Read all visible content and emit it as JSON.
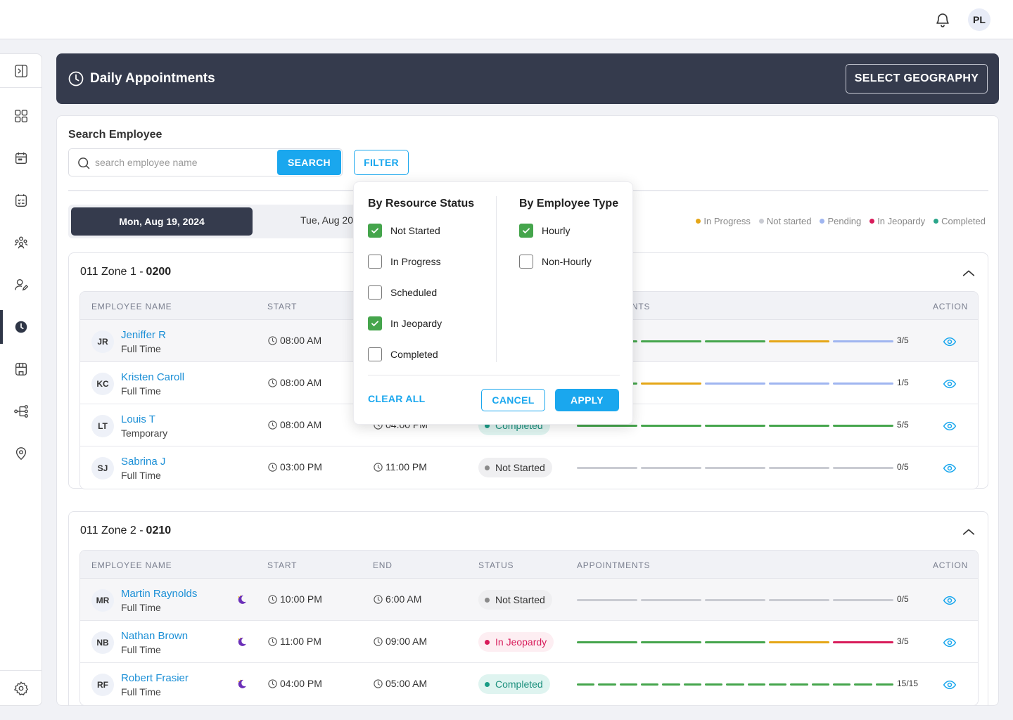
{
  "user": {
    "initials": "PL"
  },
  "header": {
    "title": "Daily Appointments",
    "select_geography_label": "SELECT GEOGRAPHY"
  },
  "search": {
    "label": "Search Employee",
    "placeholder": "search employee name",
    "value": "",
    "button_label": "SEARCH",
    "filter_label": "FILTER"
  },
  "dates": {
    "active": "Mon, Aug 19, 2024",
    "next": "Tue, Aug 20"
  },
  "legend": [
    {
      "label": "In Progress",
      "color": "#e5a617"
    },
    {
      "label": "Not started",
      "color": "#c9cbd2"
    },
    {
      "label": "Pending",
      "color": "#9fb5f0"
    },
    {
      "label": "In Jeopardy",
      "color": "#d81b5a"
    },
    {
      "label": "Completed",
      "color": "#2aa58a"
    }
  ],
  "columns": {
    "name": "EMPLOYEE NAME",
    "start": "START",
    "end": "END",
    "status": "STATUS",
    "appointments": "APPOINTMENTS",
    "action": "ACTION"
  },
  "zones": [
    {
      "label": "011 Zone 1 -",
      "code": "0200",
      "rows": [
        {
          "initials": "JR",
          "name": "Jeniffer R",
          "type": "Full Time",
          "start": "08:00 AM",
          "end": "",
          "status": "",
          "count": "3/5"
        },
        {
          "initials": "KC",
          "name": "Kristen Caroll",
          "type": "Full Time",
          "start": "08:00 AM",
          "end": "",
          "status": "",
          "count": "1/5"
        },
        {
          "initials": "LT",
          "name": "Louis T",
          "type": "Temporary",
          "start": "08:00 AM",
          "end": "04:00 PM",
          "status": "Completed",
          "count": "5/5"
        },
        {
          "initials": "SJ",
          "name": "Sabrina J",
          "type": "Full Time",
          "start": "03:00 PM",
          "end": "11:00 PM",
          "status": "Not Started",
          "count": "0/5"
        }
      ]
    },
    {
      "label": "011 Zone 2 -",
      "code": "0210",
      "rows": [
        {
          "initials": "MR",
          "name": "Martin Raynolds",
          "type": "Full Time",
          "start": "10:00 PM",
          "end": "6:00 AM",
          "status": "Not Started",
          "count": "0/5"
        },
        {
          "initials": "NB",
          "name": "Nathan Brown",
          "type": "Full Time",
          "start": "11:00 PM",
          "end": "09:00 AM",
          "status": "In Jeopardy",
          "count": "3/5"
        },
        {
          "initials": "RF",
          "name": "Robert Frasier",
          "type": "Full Time",
          "start": "04:00 PM",
          "end": "05:00 AM",
          "status": "Completed",
          "count": "15/15"
        }
      ]
    }
  ],
  "filter_popup": {
    "resource_title": "By Resource Status",
    "employee_title": "By Employee Type",
    "resource_options": [
      {
        "label": "Not Started",
        "checked": true
      },
      {
        "label": "In Progress",
        "checked": false
      },
      {
        "label": "Scheduled",
        "checked": false
      },
      {
        "label": "In Jeopardy",
        "checked": true
      },
      {
        "label": "Completed",
        "checked": false
      }
    ],
    "employee_options": [
      {
        "label": "Hourly",
        "checked": true
      },
      {
        "label": "Non-Hourly",
        "checked": false
      }
    ],
    "clear_label": "CLEAR ALL",
    "cancel_label": "CANCEL",
    "apply_label": "APPLY"
  }
}
